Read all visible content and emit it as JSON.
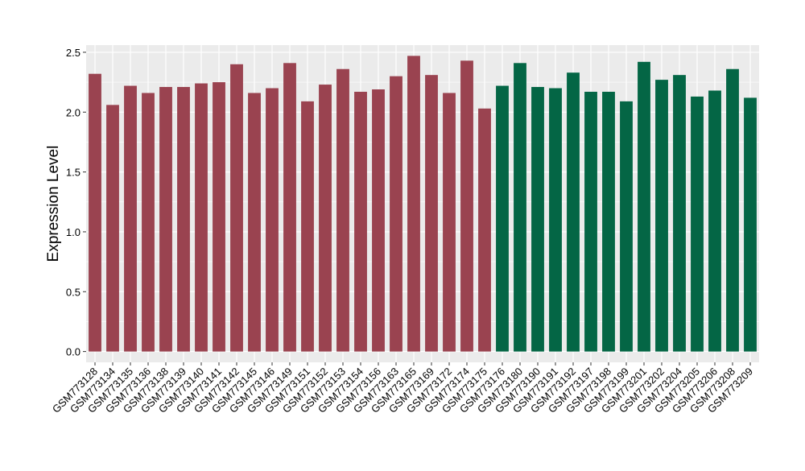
{
  "chart_data": {
    "type": "bar",
    "title": "",
    "xlabel": "",
    "ylabel": "Expression Level",
    "ylim": [
      -0.09,
      2.56
    ],
    "yticks": [
      0.0,
      0.5,
      1.0,
      1.5,
      2.0,
      2.5
    ],
    "ytick_labels": [
      "0.0",
      "0.5",
      "1.0",
      "1.5",
      "2.0",
      "2.5"
    ],
    "grid": true,
    "legend": "none",
    "colors": {
      "group1": "#9a4350",
      "group2": "#046645",
      "panel_bg": "#ebebeb",
      "grid": "#ffffff"
    },
    "categories": [
      "GSM773128",
      "GSM773134",
      "GSM773135",
      "GSM773136",
      "GSM773138",
      "GSM773139",
      "GSM773140",
      "GSM773141",
      "GSM773142",
      "GSM773145",
      "GSM773146",
      "GSM773149",
      "GSM773151",
      "GSM773152",
      "GSM773153",
      "GSM773154",
      "GSM773156",
      "GSM773163",
      "GSM773165",
      "GSM773169",
      "GSM773172",
      "GSM773174",
      "GSM773175",
      "GSM773176",
      "GSM773180",
      "GSM773190",
      "GSM773191",
      "GSM773192",
      "GSM773197",
      "GSM773198",
      "GSM773199",
      "GSM773201",
      "GSM773202",
      "GSM773204",
      "GSM773205",
      "GSM773206",
      "GSM773208",
      "GSM773209"
    ],
    "values": [
      2.32,
      2.06,
      2.22,
      2.16,
      2.21,
      2.21,
      2.24,
      2.25,
      2.4,
      2.16,
      2.2,
      2.41,
      2.09,
      2.23,
      2.36,
      2.17,
      2.19,
      2.3,
      2.47,
      2.31,
      2.16,
      2.43,
      2.03,
      2.22,
      2.41,
      2.21,
      2.2,
      2.33,
      2.17,
      2.17,
      2.09,
      2.42,
      2.27,
      2.31,
      2.13,
      2.18,
      2.36,
      2.12
    ],
    "groups": [
      1,
      1,
      1,
      1,
      1,
      1,
      1,
      1,
      1,
      1,
      1,
      1,
      1,
      1,
      1,
      1,
      1,
      1,
      1,
      1,
      1,
      1,
      1,
      2,
      2,
      2,
      2,
      2,
      2,
      2,
      2,
      2,
      2,
      2,
      2,
      2,
      2,
      2
    ]
  }
}
